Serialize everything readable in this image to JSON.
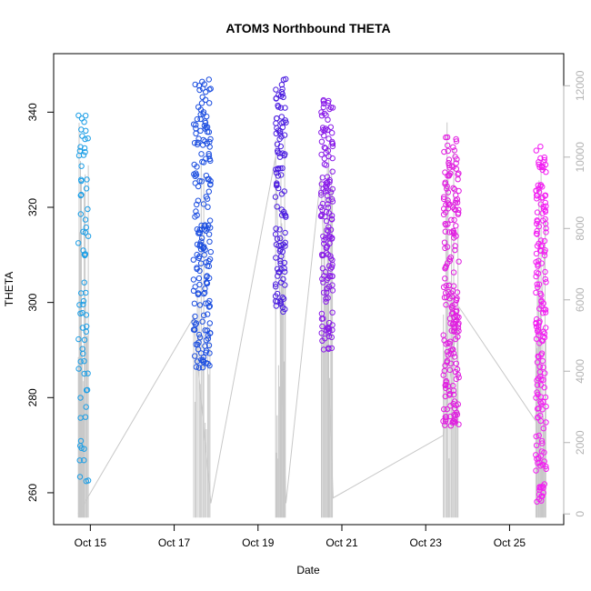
{
  "chart_data": {
    "type": "scatter",
    "title": "ATOM3 Northbound THETA",
    "xlabel": "Date",
    "ylabel": "THETA",
    "xlim": [
      "2021-10-14T03:00",
      "2021-10-26T07:00"
    ],
    "ylim": [
      253.3,
      352.3
    ],
    "y2lim": [
      -300,
      12900
    ],
    "x_ticks": [
      "2021-10-15",
      "2021-10-17",
      "2021-10-19",
      "2021-10-21",
      "2021-10-23",
      "2021-10-25"
    ],
    "x_tick_labels": [
      "Oct 15",
      "Oct 17",
      "Oct 19",
      "Oct 21",
      "Oct 23",
      "Oct 25"
    ],
    "y_ticks": [
      260,
      280,
      300,
      320,
      340
    ],
    "y2_ticks": [
      0,
      2000,
      4000,
      6000,
      8000,
      10000,
      12000
    ],
    "grid": false,
    "colors": {
      "axis": "#000000",
      "right_axis": "#b3b3b3",
      "trace": "#c8c8c8",
      "scale": [
        "#1b9ee6",
        "#1d4fe0",
        "#4b1de0",
        "#8a1de8",
        "#e01de0",
        "#f21df2"
      ]
    },
    "series": [
      {
        "passes": [
          {
            "start": "2021-10-14T17:00",
            "end": "2021-10-14T23:00",
            "min": 260,
            "max": 340,
            "n": 70
          },
          {
            "start": "2021-10-17T11:00",
            "end": "2021-10-17T21:00",
            "min": 286,
            "max": 347,
            "n": 190
          },
          {
            "start": "2021-10-19T10:00",
            "end": "2021-10-19T16:00",
            "min": 298,
            "max": 349,
            "n": 110
          },
          {
            "start": "2021-10-20T12:00",
            "end": "2021-10-20T19:00",
            "min": 290,
            "max": 344,
            "n": 150
          },
          {
            "start": "2021-10-23T10:00",
            "end": "2021-10-23T19:00",
            "min": 274,
            "max": 335,
            "n": 200
          },
          {
            "start": "2021-10-25T15:00",
            "end": "2021-10-25T21:00",
            "min": 258,
            "max": 333,
            "n": 180
          }
        ]
      },
      {
        "type": "line",
        "axis": "right",
        "x": [
          "2021-10-14T17:00",
          "2021-10-14T23:00",
          "2021-10-17T11:00",
          "2021-10-17T21:00",
          "2021-10-19T10:00",
          "2021-10-19T16:00",
          "2021-10-20T12:00",
          "2021-10-20T19:00",
          "2021-10-23T10:00",
          "2021-10-23T19:00",
          "2021-10-25T15:00",
          "2021-10-25T21:00"
        ],
        "y": [
          0,
          500,
          5500,
          300,
          10000,
          300,
          9500,
          450,
          2200,
          5800,
          2600,
          8300
        ]
      }
    ]
  }
}
